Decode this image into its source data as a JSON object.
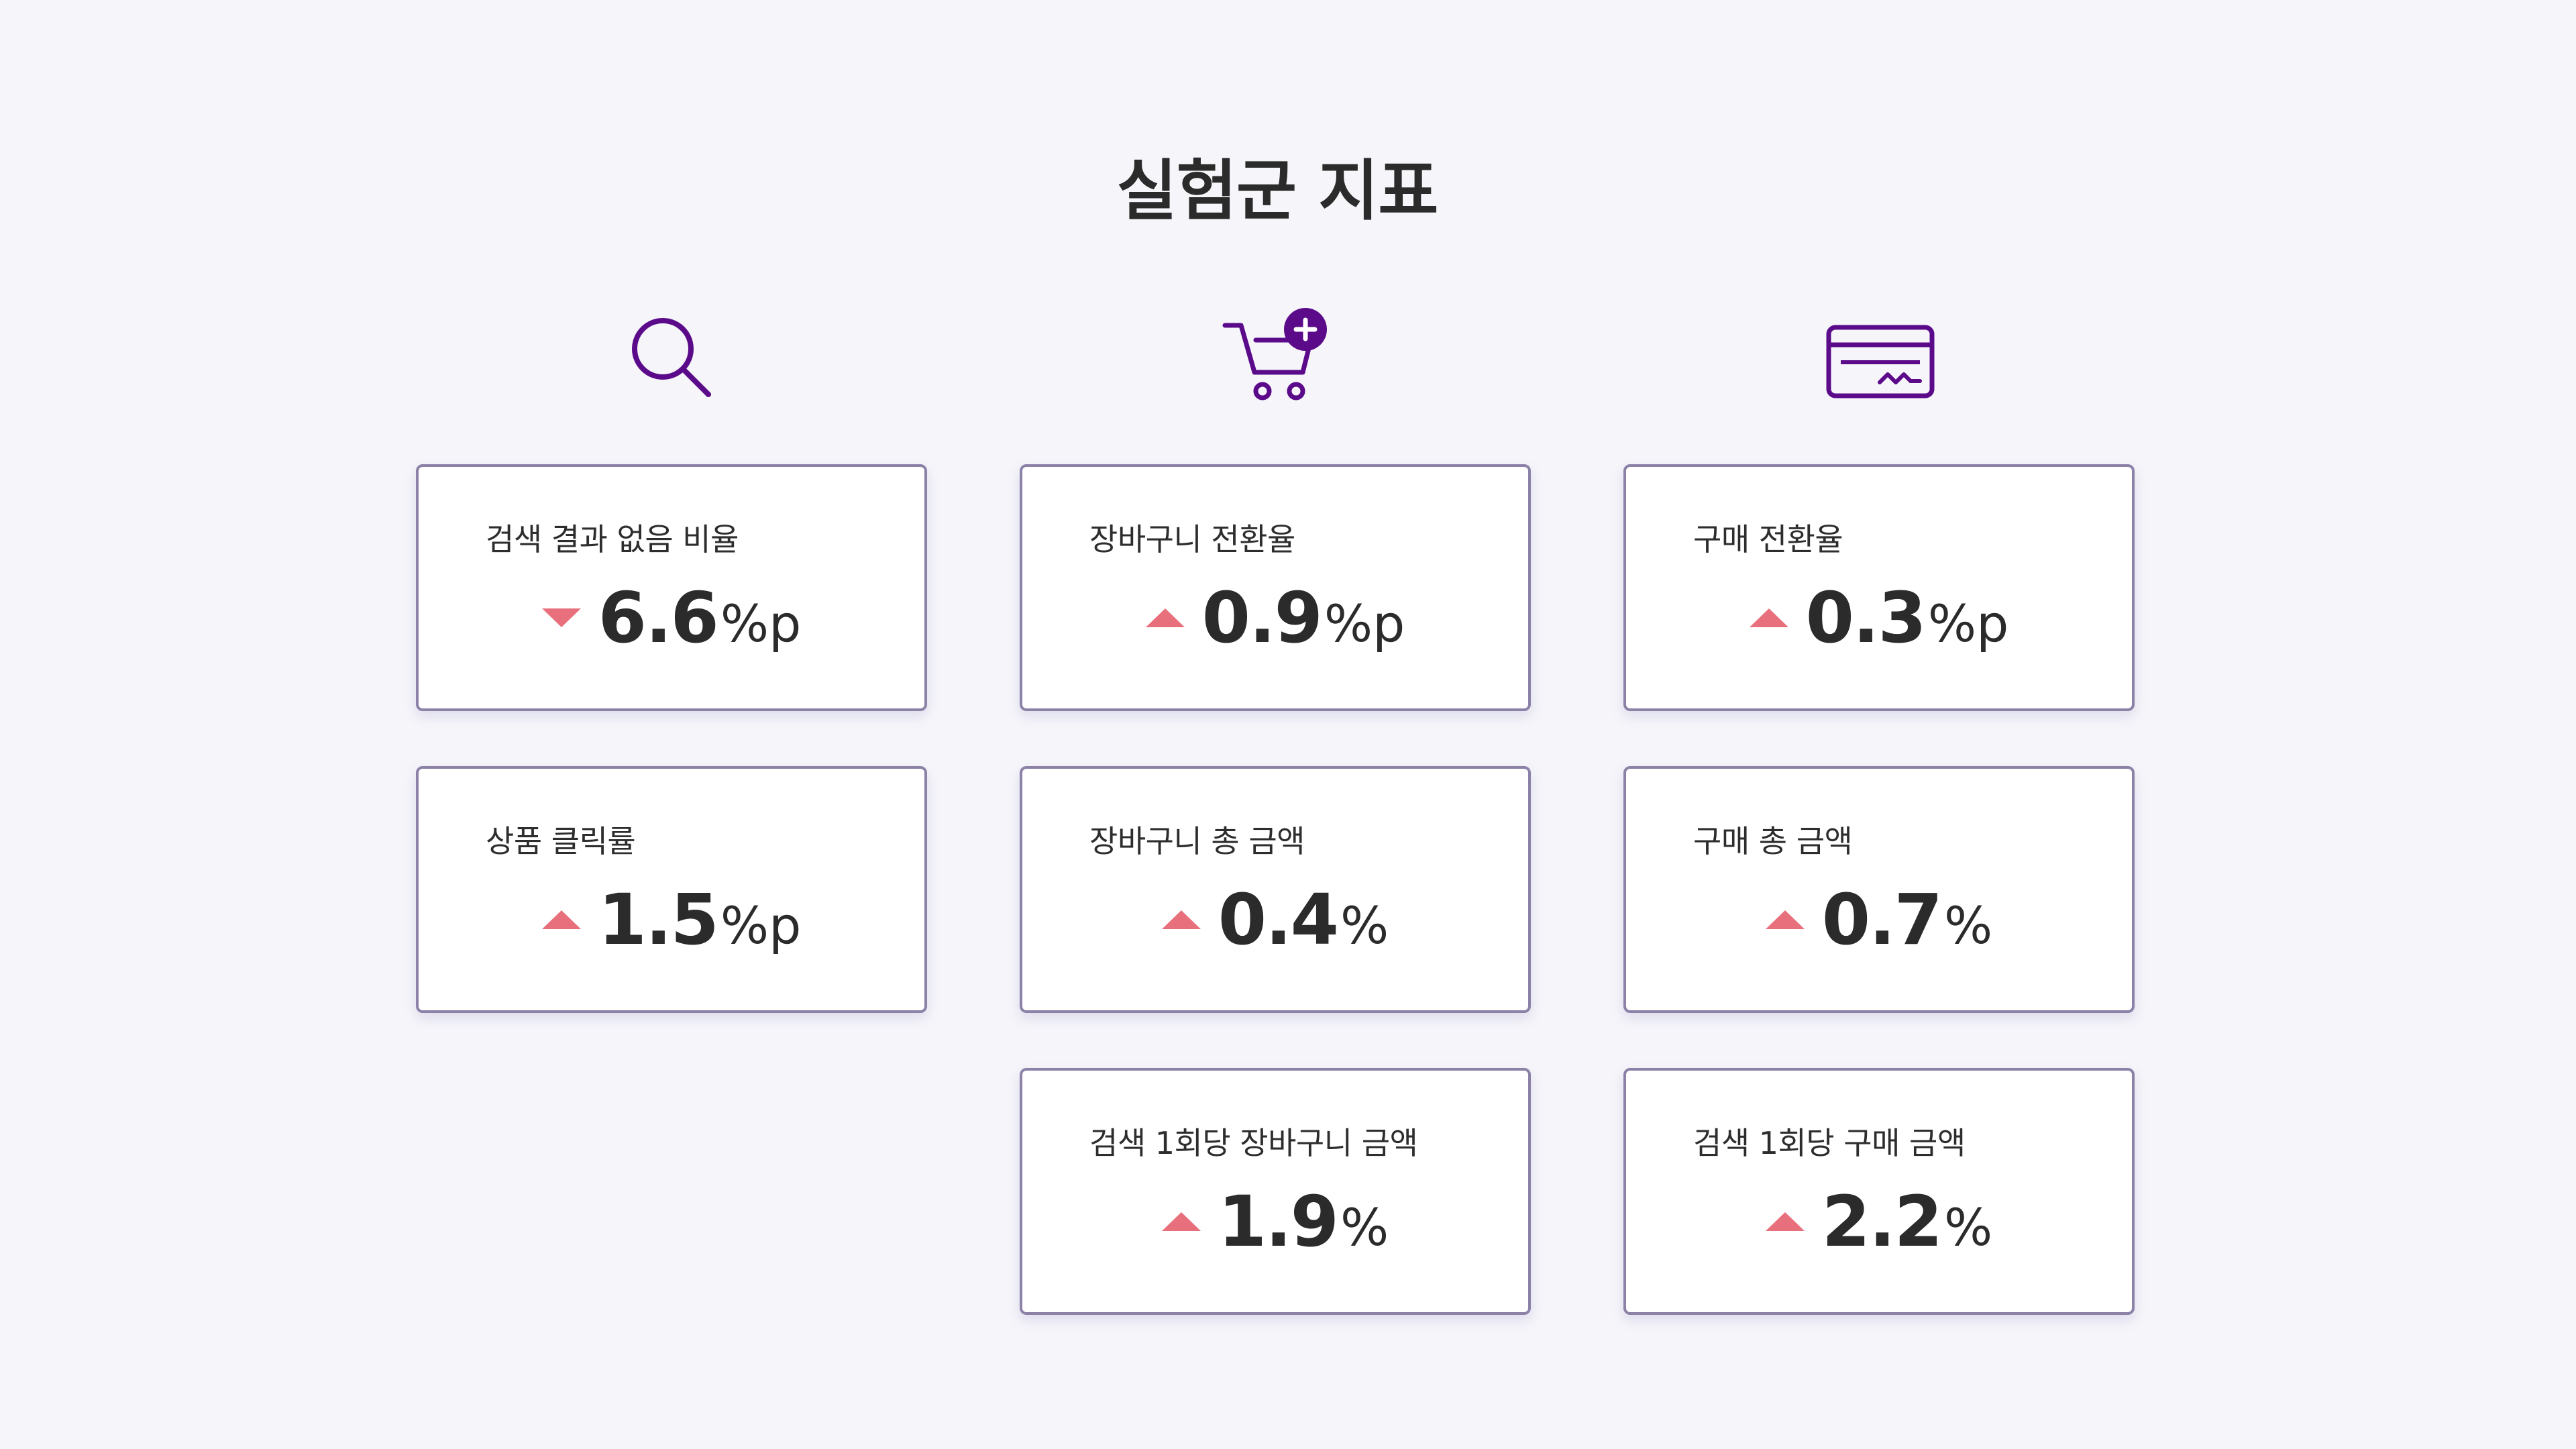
{
  "title": "실험군 지표",
  "colors": {
    "icon_purple": "#5b0a8a",
    "trend_red": "#e8707c",
    "card_border": "#8c82a8",
    "background": "#f5f5fa"
  },
  "columns": [
    {
      "icon": "search-icon",
      "cards": [
        {
          "label": "검색 결과 없음 비율",
          "trend": "down",
          "value": "6.6",
          "unit": "%p"
        },
        {
          "label": "상품 클릭률",
          "trend": "up",
          "value": "1.5",
          "unit": "%p"
        }
      ]
    },
    {
      "icon": "cart-add-icon",
      "cards": [
        {
          "label": "장바구니 전환율",
          "trend": "up",
          "value": "0.9",
          "unit": "%p"
        },
        {
          "label": "장바구니 총 금액",
          "trend": "up",
          "value": "0.4",
          "unit": "%"
        },
        {
          "label": "검색 1회당 장바구니 금액",
          "trend": "up",
          "value": "1.9",
          "unit": "%"
        }
      ]
    },
    {
      "icon": "credit-card-icon",
      "cards": [
        {
          "label": "구매 전환율",
          "trend": "up",
          "value": "0.3",
          "unit": "%p"
        },
        {
          "label": "구매 총 금액",
          "trend": "up",
          "value": "0.7",
          "unit": "%"
        },
        {
          "label": "검색 1회당 구매 금액",
          "trend": "up",
          "value": "2.2",
          "unit": "%"
        }
      ]
    }
  ]
}
